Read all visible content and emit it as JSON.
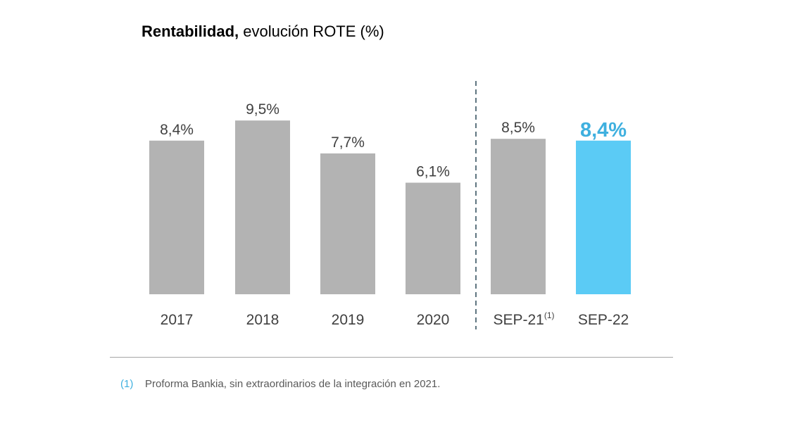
{
  "title": {
    "bold": "Rentabilidad,",
    "rest": " evolución ROTE (%)"
  },
  "chart_data": {
    "type": "bar",
    "title": "Rentabilidad, evolución ROTE (%)",
    "categories": [
      "2017",
      "2018",
      "2019",
      "2020",
      "SEP-21",
      "SEP-22"
    ],
    "category_superscripts": [
      "",
      "",
      "",
      "",
      "(1)",
      ""
    ],
    "values": [
      8.4,
      9.5,
      7.7,
      6.1,
      8.5,
      8.4
    ],
    "data_labels": [
      "8,4%",
      "9,5%",
      "7,7%",
      "6,1%",
      "8,5%",
      "8,4%"
    ],
    "highlight_index": 5,
    "separator_after_index": 3,
    "ylim": [
      0,
      10.2
    ],
    "xlabel": "",
    "ylabel": "",
    "grid": false,
    "colors": {
      "bar": "#b3b3b3",
      "highlight": "#5bcbf5",
      "label": "#404040",
      "highlight_label": "#3fb0df",
      "separator": "#5f7580"
    }
  },
  "footnote": {
    "marker": "(1)",
    "text": "Proforma Bankia, sin extraordinarios de la integración en 2021."
  }
}
